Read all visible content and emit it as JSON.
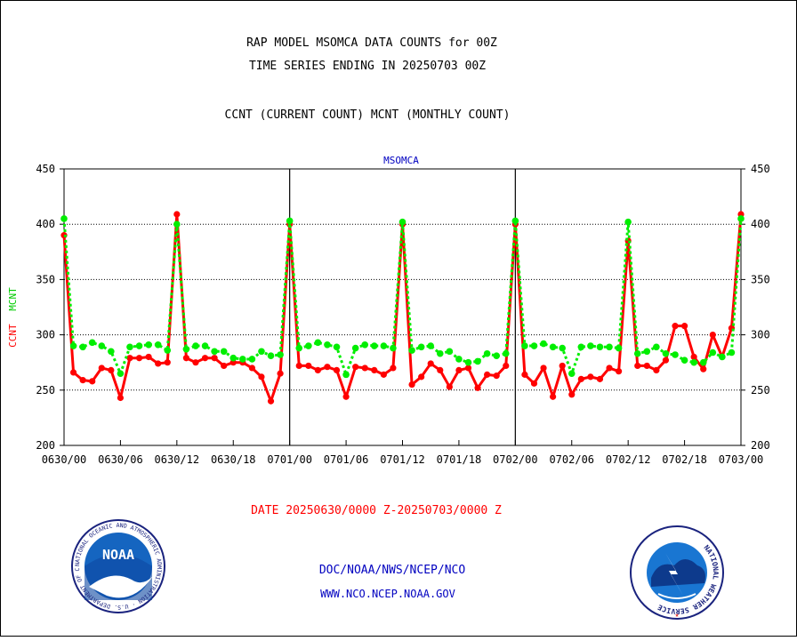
{
  "header": {
    "title_line1": "RAP MODEL MSOMCA DATA COUNTS for 00Z",
    "title_line2": "TIME SERIES ENDING IN 20250703 00Z",
    "subtitle": "CCNT (CURRENT COUNT) MCNT (MONTHLY COUNT)"
  },
  "footer": {
    "date_range": "DATE 20250630/0000 Z-20250703/0000 Z",
    "org_line": "DOC/NOAA/NWS/NCEP/NCO",
    "url_line": "WWW.NCO.NCEP.NOAA.GOV",
    "noaa_logo_text": "NOAA",
    "noaa_ring_text": "NATIONAL OCEANIC AND ATMOSPHERIC ADMINISTRATION · U.S. DEPARTMENT OF COMMERCE ·",
    "nws_ring_text": "NATIONAL WEATHER SERVICE"
  },
  "colors": {
    "ccnt": "#ff0000",
    "mcnt": "#00ee00",
    "title": "#000000",
    "plot_label": "#0000c0",
    "date_text": "#ff0000",
    "link_text": "#0000c0"
  },
  "chart_data": {
    "type": "line",
    "title": "MSOMCA",
    "ylabel_series": [
      "CCNT",
      "MCNT"
    ],
    "ylim": [
      200,
      450
    ],
    "yticks": [
      200,
      250,
      300,
      350,
      400,
      450
    ],
    "grid": true,
    "x_tick_labels": [
      "0630/00",
      "0630/06",
      "0630/12",
      "0630/18",
      "0701/00",
      "0701/06",
      "0701/12",
      "0701/18",
      "0702/00",
      "0702/06",
      "0702/12",
      "0702/18",
      "0703/00"
    ],
    "x_hours": [
      0,
      1,
      2,
      3,
      4,
      5,
      6,
      7,
      8,
      9,
      10,
      11,
      12,
      13,
      14,
      15,
      16,
      17,
      18,
      19,
      20,
      21,
      22,
      23,
      24,
      25,
      26,
      27,
      28,
      29,
      30,
      31,
      32,
      33,
      34,
      35,
      36,
      37,
      38,
      39,
      40,
      41,
      42,
      43,
      44,
      45,
      46,
      47,
      48,
      49,
      50,
      51,
      52,
      53,
      54,
      55,
      56,
      57,
      58,
      59,
      60,
      61,
      62,
      63,
      64,
      65,
      66,
      67,
      68,
      69,
      70,
      71,
      72
    ],
    "series": [
      {
        "name": "CCNT",
        "values": [
          390,
          266,
          259,
          258,
          270,
          268,
          243,
          279,
          279,
          280,
          274,
          275,
          409,
          279,
          275,
          279,
          279,
          272,
          275,
          275,
          270,
          262,
          240,
          265,
          400,
          272,
          272,
          268,
          271,
          268,
          244,
          271,
          270,
          268,
          264,
          270,
          400,
          255,
          262,
          274,
          268,
          253,
          268,
          270,
          252,
          264,
          263,
          272,
          400,
          264,
          256,
          270,
          244,
          272,
          246,
          260,
          262,
          260,
          270,
          267,
          385,
          272,
          272,
          268,
          277,
          308,
          308,
          280,
          269,
          300,
          280,
          306,
          409
        ]
      },
      {
        "name": "MCNT",
        "values": [
          405,
          290,
          289,
          293,
          290,
          285,
          265,
          289,
          290,
          291,
          291,
          286,
          400,
          287,
          290,
          290,
          285,
          285,
          279,
          278,
          278,
          285,
          281,
          282,
          403,
          288,
          290,
          293,
          291,
          289,
          264,
          288,
          291,
          290,
          290,
          288,
          402,
          286,
          289,
          290,
          283,
          285,
          278,
          275,
          276,
          283,
          281,
          283,
          403,
          290,
          290,
          292,
          289,
          288,
          265,
          289,
          290,
          289,
          289,
          288,
          402,
          283,
          285,
          289,
          283,
          282,
          277,
          275,
          275,
          284,
          280,
          284,
          405
        ]
      }
    ]
  }
}
